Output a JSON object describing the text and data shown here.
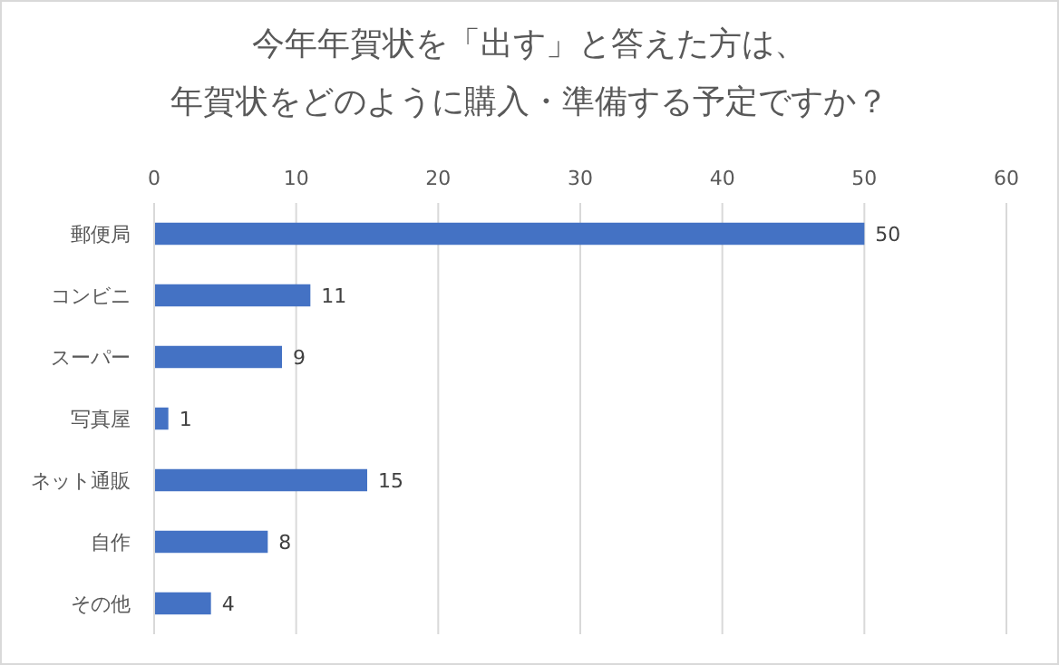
{
  "chart_data": {
    "type": "bar",
    "orientation": "horizontal",
    "title": "今年年賀状を「出す」と答えた方は、年賀状をどのように購入・準備する予定ですか？",
    "categories": [
      "郵便局",
      "コンビニ",
      "スーパー",
      "写真屋",
      "ネット通販",
      "自作",
      "その他"
    ],
    "values": [
      50,
      11,
      9,
      1,
      15,
      8,
      4
    ],
    "color": "#4472c4",
    "xlim": [
      0,
      60
    ],
    "xticks": [
      0,
      10,
      20,
      30,
      40,
      50,
      60
    ],
    "grid": "x",
    "data_labels": true
  }
}
